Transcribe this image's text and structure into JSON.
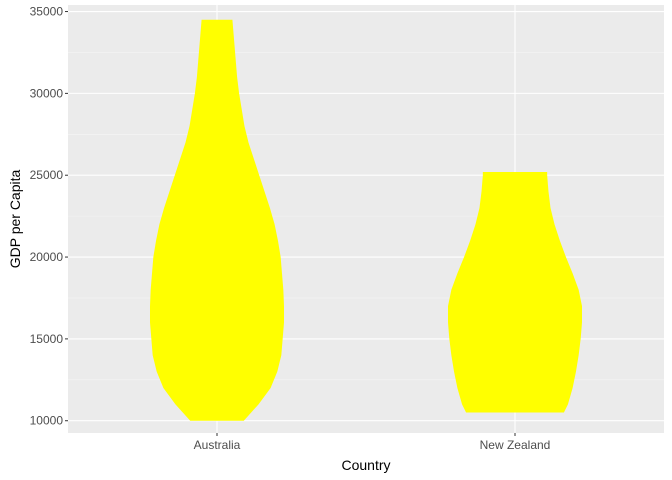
{
  "chart_data": {
    "type": "violin",
    "xlabel": "Country",
    "ylabel": "GDP per Capita",
    "categories": [
      "Australia",
      "New Zealand"
    ],
    "ylim": [
      9250,
      35400
    ],
    "y_ticks": [
      10000,
      15000,
      20000,
      25000,
      30000,
      35000
    ],
    "y_tick_labels": [
      "10000",
      "15000",
      "20000",
      "25000",
      "30000",
      "35000"
    ],
    "grid": true,
    "legend": "none",
    "colors": {
      "panel_background": "#EBEBEB",
      "grid_major": "#FFFFFF",
      "grid_minor": "#F5F5F5",
      "fill": "#FFFF00",
      "tick_mark": "#333333"
    },
    "series": [
      {
        "category": "Australia",
        "min": 10000,
        "max": 34500,
        "profile": [
          [
            10000,
            0.4
          ],
          [
            11000,
            0.62
          ],
          [
            12000,
            0.8
          ],
          [
            13000,
            0.9
          ],
          [
            14000,
            0.96
          ],
          [
            15000,
            0.98
          ],
          [
            16000,
            1.0
          ],
          [
            17000,
            1.0
          ],
          [
            18000,
            0.99
          ],
          [
            19000,
            0.97
          ],
          [
            20000,
            0.95
          ],
          [
            21000,
            0.91
          ],
          [
            22000,
            0.86
          ],
          [
            23000,
            0.79
          ],
          [
            24000,
            0.71
          ],
          [
            25000,
            0.63
          ],
          [
            26000,
            0.55
          ],
          [
            27000,
            0.47
          ],
          [
            28000,
            0.41
          ],
          [
            29000,
            0.37
          ],
          [
            30000,
            0.33
          ],
          [
            31000,
            0.3
          ],
          [
            32000,
            0.28
          ],
          [
            33000,
            0.26
          ],
          [
            34000,
            0.24
          ],
          [
            34500,
            0.23
          ]
        ]
      },
      {
        "category": "New Zealand",
        "min": 10500,
        "max": 25200,
        "profile": [
          [
            10500,
            0.73
          ],
          [
            11000,
            0.79
          ],
          [
            12000,
            0.86
          ],
          [
            13000,
            0.91
          ],
          [
            14000,
            0.95
          ],
          [
            15000,
            0.98
          ],
          [
            16000,
            1.0
          ],
          [
            17000,
            1.0
          ],
          [
            18000,
            0.95
          ],
          [
            19000,
            0.86
          ],
          [
            20000,
            0.76
          ],
          [
            21000,
            0.67
          ],
          [
            22000,
            0.59
          ],
          [
            23000,
            0.53
          ],
          [
            24000,
            0.5
          ],
          [
            25000,
            0.48
          ],
          [
            25200,
            0.48
          ]
        ]
      }
    ]
  }
}
